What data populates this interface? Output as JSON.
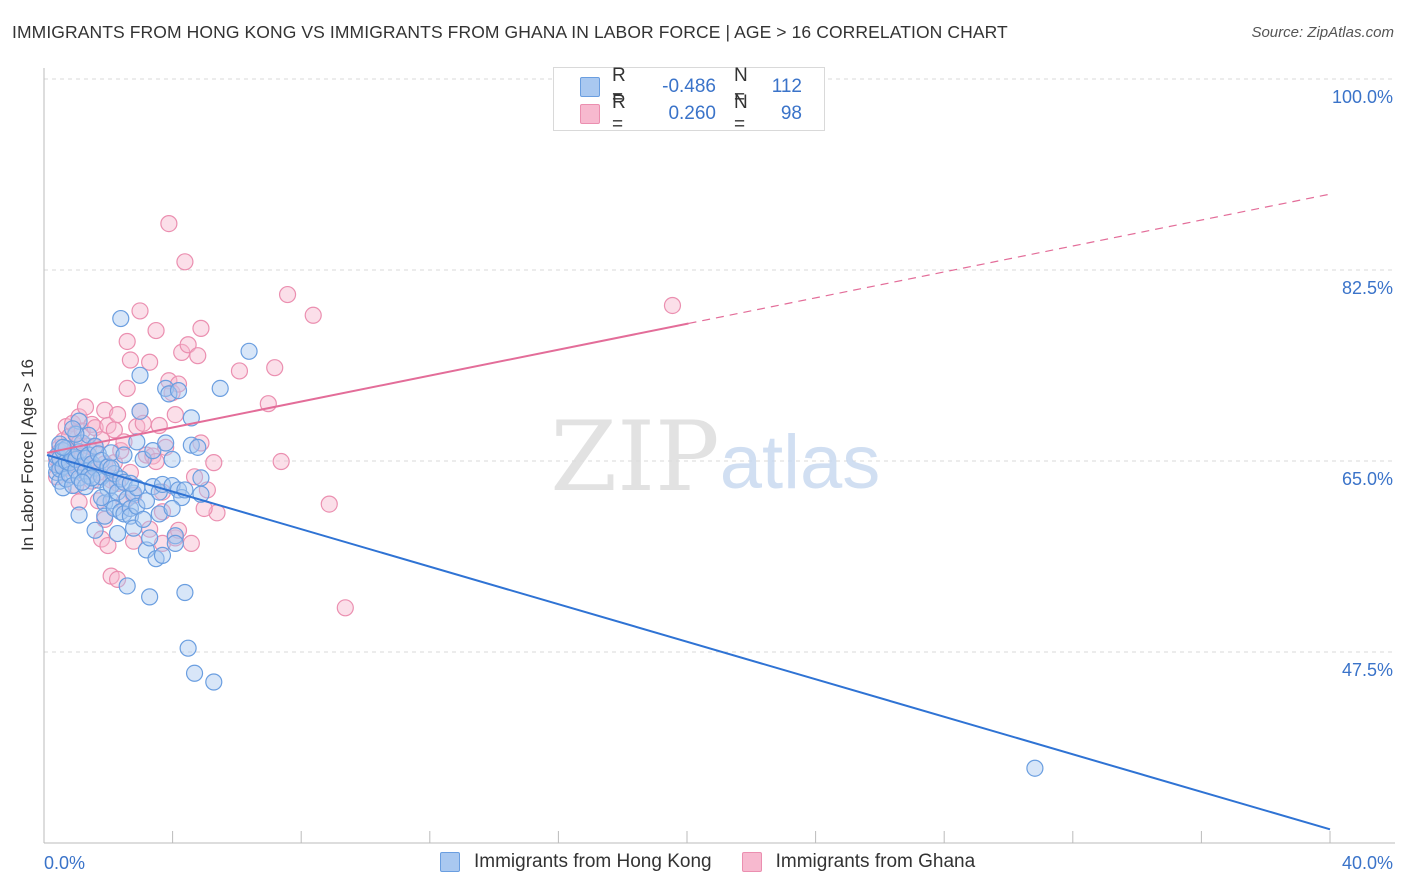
{
  "header": {
    "title": "IMMIGRANTS FROM HONG KONG VS IMMIGRANTS FROM GHANA IN LABOR FORCE | AGE > 16 CORRELATION CHART",
    "source": "Source: ZipAtlas.com"
  },
  "watermark": {
    "zip": "ZIP",
    "atlas": "atlas"
  },
  "colors": {
    "blue_fill": "#a9c8f0",
    "blue_stroke": "#6a9ee0",
    "blue_line": "#2f73d4",
    "pink_fill": "#f7b9cf",
    "pink_stroke": "#eb8fb0",
    "pink_line": "#e36d99",
    "axis_text": "#3a73c9",
    "grid": "#d9d9d9"
  },
  "legend": {
    "rows": [
      {
        "r_label": "R =",
        "r_value": "-0.486",
        "n_label": "N =",
        "n_value": "112"
      },
      {
        "r_label": "R =",
        "r_value": "0.260",
        "n_label": "N =",
        "n_value": "98"
      }
    ]
  },
  "bottom_legend": {
    "hong_kong": "Immigrants from Hong Kong",
    "ghana": "Immigrants from Ghana"
  },
  "chart_data": {
    "type": "scatter",
    "title": "IMMIGRANTS FROM HONG KONG VS IMMIGRANTS FROM GHANA IN LABOR FORCE | AGE > 16 CORRELATION CHART",
    "xlabel": "",
    "ylabel": "In Labor Force | Age > 16",
    "xlim": [
      0,
      40
    ],
    "ylim": [
      32.5,
      102
    ],
    "x_tick_labels": [
      {
        "value": 0,
        "label": "0.0%"
      },
      {
        "value": 40,
        "label": "40.0%"
      }
    ],
    "y_tick_labels": [
      {
        "value": 100,
        "label": "100.0%"
      },
      {
        "value": 82.5,
        "label": "82.5%"
      },
      {
        "value": 65,
        "label": "65.0%"
      },
      {
        "value": 47.5,
        "label": "47.5%"
      }
    ],
    "series": [
      {
        "name": "Immigrants from Hong Kong",
        "R": -0.486,
        "N": 112,
        "trend": {
          "x": [
            0.0,
            40.0
          ],
          "y": [
            67.2,
            32.9
          ],
          "dashed_from": null
        },
        "points": [
          [
            0.3,
            65.6
          ],
          [
            0.3,
            66.3
          ],
          [
            0.3,
            67.1
          ],
          [
            0.4,
            64.8
          ],
          [
            0.4,
            65.9
          ],
          [
            0.4,
            66.9
          ],
          [
            0.4,
            68.2
          ],
          [
            0.5,
            64.2
          ],
          [
            0.5,
            66.1
          ],
          [
            0.5,
            67.6
          ],
          [
            0.6,
            65.0
          ],
          [
            0.6,
            66.6
          ],
          [
            0.6,
            67.8
          ],
          [
            0.7,
            65.4
          ],
          [
            0.7,
            66.5
          ],
          [
            0.8,
            67.0
          ],
          [
            0.8,
            64.4
          ],
          [
            0.9,
            65.8
          ],
          [
            0.9,
            66.8
          ],
          [
            1.0,
            67.5
          ],
          [
            1.0,
            65.1
          ],
          [
            1.0,
            61.7
          ],
          [
            1.1,
            66.2
          ],
          [
            1.1,
            68.3
          ],
          [
            1.2,
            65.7
          ],
          [
            1.2,
            66.9
          ],
          [
            1.2,
            64.3
          ],
          [
            1.3,
            67.2
          ],
          [
            1.3,
            65.3
          ],
          [
            1.3,
            69.0
          ],
          [
            1.4,
            66.4
          ],
          [
            1.5,
            66.0
          ],
          [
            1.5,
            68.0
          ],
          [
            1.5,
            60.3
          ],
          [
            1.6,
            64.9
          ],
          [
            1.6,
            67.3
          ],
          [
            1.7,
            65.2
          ],
          [
            1.7,
            66.7
          ],
          [
            1.8,
            62.8
          ],
          [
            1.8,
            61.6
          ],
          [
            1.9,
            64.1
          ],
          [
            1.9,
            66.1
          ],
          [
            2.0,
            63.0
          ],
          [
            2.0,
            64.4
          ],
          [
            2.0,
            67.4
          ],
          [
            2.1,
            62.3
          ],
          [
            2.1,
            65.5
          ],
          [
            2.2,
            60.0
          ],
          [
            2.2,
            63.8
          ],
          [
            2.3,
            65.0
          ],
          [
            2.3,
            62.0
          ],
          [
            2.4,
            61.8
          ],
          [
            2.4,
            64.7
          ],
          [
            2.5,
            55.2
          ],
          [
            2.5,
            63.2
          ],
          [
            2.6,
            62.3
          ],
          [
            2.6,
            61.6
          ],
          [
            2.7,
            63.7
          ],
          [
            2.7,
            60.5
          ],
          [
            2.8,
            62.5
          ],
          [
            2.8,
            64.2
          ],
          [
            2.8,
            68.4
          ],
          [
            2.9,
            74.5
          ],
          [
            2.9,
            71.2
          ],
          [
            3.0,
            66.8
          ],
          [
            3.0,
            61.3
          ],
          [
            3.1,
            58.5
          ],
          [
            3.1,
            63.0
          ],
          [
            3.2,
            59.6
          ],
          [
            3.2,
            54.2
          ],
          [
            3.3,
            64.3
          ],
          [
            3.3,
            67.6
          ],
          [
            3.4,
            57.7
          ],
          [
            3.5,
            63.8
          ],
          [
            3.5,
            61.8
          ],
          [
            3.6,
            58.0
          ],
          [
            3.6,
            64.5
          ],
          [
            3.7,
            68.3
          ],
          [
            3.7,
            73.3
          ],
          [
            3.8,
            72.8
          ],
          [
            3.9,
            66.8
          ],
          [
            3.9,
            64.4
          ],
          [
            4.0,
            59.8
          ],
          [
            4.0,
            59.1
          ],
          [
            4.1,
            73.1
          ],
          [
            4.1,
            64.0
          ],
          [
            4.2,
            63.3
          ],
          [
            4.3,
            54.6
          ],
          [
            4.3,
            64.0
          ],
          [
            4.4,
            49.5
          ],
          [
            4.5,
            70.6
          ],
          [
            4.5,
            68.1
          ],
          [
            4.6,
            47.2
          ],
          [
            4.7,
            67.9
          ],
          [
            4.8,
            63.6
          ],
          [
            4.8,
            65.1
          ],
          [
            5.2,
            46.4
          ],
          [
            5.4,
            73.3
          ],
          [
            6.3,
            76.7
          ],
          [
            2.3,
            79.7
          ],
          [
            2.4,
            67.2
          ],
          [
            1.0,
            70.3
          ],
          [
            0.9,
            69.1
          ],
          [
            0.5,
            67.9
          ],
          [
            2.0,
            66.0
          ],
          [
            1.7,
            63.3
          ],
          [
            1.4,
            65.1
          ],
          [
            2.6,
            64.6
          ],
          [
            3.9,
            62.3
          ],
          [
            1.1,
            64.7
          ],
          [
            0.8,
            69.6
          ],
          [
            30.8,
            38.5
          ]
        ]
      },
      {
        "name": "Immigrants from Ghana",
        "R": 0.26,
        "N": 98,
        "trend": {
          "x": [
            0.0,
            40.0
          ],
          "y": [
            67.4,
            91.1
          ],
          "dashed_from": 20.0
        },
        "points": [
          [
            0.3,
            65.2
          ],
          [
            0.3,
            66.8
          ],
          [
            0.4,
            67.9
          ],
          [
            0.4,
            66.3
          ],
          [
            0.5,
            68.5
          ],
          [
            0.5,
            66.1
          ],
          [
            0.6,
            69.8
          ],
          [
            0.6,
            67.2
          ],
          [
            0.7,
            66.0
          ],
          [
            0.7,
            68.9
          ],
          [
            0.8,
            70.1
          ],
          [
            0.8,
            66.7
          ],
          [
            0.9,
            69.2
          ],
          [
            0.9,
            67.5
          ],
          [
            1.0,
            68.3
          ],
          [
            1.0,
            70.7
          ],
          [
            1.1,
            67.1
          ],
          [
            1.1,
            69.4
          ],
          [
            1.2,
            71.6
          ],
          [
            1.2,
            66.3
          ],
          [
            1.3,
            68.0
          ],
          [
            1.4,
            70.0
          ],
          [
            1.4,
            64.8
          ],
          [
            1.5,
            67.9
          ],
          [
            1.5,
            69.7
          ],
          [
            1.6,
            65.6
          ],
          [
            1.6,
            63.0
          ],
          [
            1.7,
            68.6
          ],
          [
            1.7,
            59.5
          ],
          [
            1.8,
            71.3
          ],
          [
            1.8,
            66.4
          ],
          [
            1.9,
            58.9
          ],
          [
            1.9,
            69.9
          ],
          [
            2.0,
            56.1
          ],
          [
            2.0,
            64.9
          ],
          [
            2.1,
            69.5
          ],
          [
            2.1,
            66.5
          ],
          [
            2.2,
            55.8
          ],
          [
            2.2,
            70.9
          ],
          [
            2.3,
            67.6
          ],
          [
            2.4,
            62.9
          ],
          [
            2.4,
            68.4
          ],
          [
            2.5,
            77.6
          ],
          [
            2.5,
            73.3
          ],
          [
            2.6,
            75.9
          ],
          [
            2.6,
            65.6
          ],
          [
            2.7,
            63.5
          ],
          [
            2.8,
            69.8
          ],
          [
            2.9,
            80.4
          ],
          [
            2.9,
            71.2
          ],
          [
            3.0,
            70.1
          ],
          [
            3.1,
            67.2
          ],
          [
            3.2,
            75.7
          ],
          [
            3.2,
            60.4
          ],
          [
            3.3,
            67.1
          ],
          [
            3.4,
            66.6
          ],
          [
            3.4,
            78.6
          ],
          [
            3.5,
            69.9
          ],
          [
            3.6,
            62.0
          ],
          [
            3.6,
            59.1
          ],
          [
            3.7,
            67.9
          ],
          [
            3.8,
            88.4
          ],
          [
            3.8,
            74.0
          ],
          [
            3.9,
            72.9
          ],
          [
            4.0,
            70.9
          ],
          [
            4.0,
            59.6
          ],
          [
            4.1,
            73.7
          ],
          [
            4.2,
            76.6
          ],
          [
            4.3,
            84.9
          ],
          [
            4.4,
            77.3
          ],
          [
            4.5,
            59.1
          ],
          [
            4.6,
            65.2
          ],
          [
            4.7,
            76.3
          ],
          [
            4.8,
            68.3
          ],
          [
            4.8,
            78.8
          ],
          [
            5.0,
            64.0
          ],
          [
            5.2,
            66.5
          ],
          [
            5.3,
            61.9
          ],
          [
            6.0,
            74.9
          ],
          [
            6.9,
            71.9
          ],
          [
            7.1,
            75.2
          ],
          [
            7.3,
            66.6
          ],
          [
            7.5,
            81.9
          ],
          [
            8.3,
            80.0
          ],
          [
            8.8,
            62.7
          ],
          [
            9.3,
            53.2
          ],
          [
            19.5,
            80.9
          ],
          [
            0.4,
            67.5
          ],
          [
            0.6,
            66.2
          ],
          [
            1.3,
            66.2
          ],
          [
            2.2,
            64.6
          ],
          [
            3.6,
            63.8
          ],
          [
            4.1,
            60.3
          ],
          [
            1.0,
            62.9
          ],
          [
            1.8,
            61.3
          ],
          [
            2.7,
            59.3
          ],
          [
            0.9,
            64.4
          ],
          [
            4.9,
            62.3
          ]
        ]
      }
    ]
  }
}
